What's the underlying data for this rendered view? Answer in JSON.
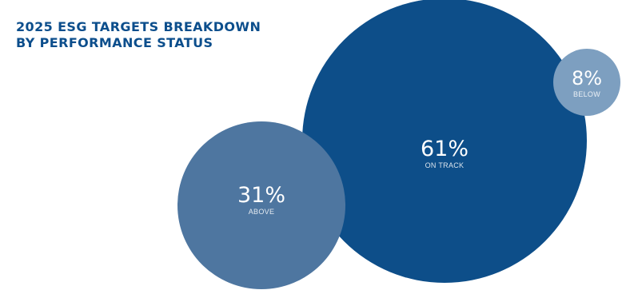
{
  "chart_data": {
    "type": "bubble",
    "title": [
      "2025 ESG TARGETS BREAKDOWN",
      "BY PERFORMANCE STATUS"
    ],
    "series": [
      {
        "name": "ON TRACK",
        "value": 61,
        "display": "61%",
        "color": "#0d4e89"
      },
      {
        "name": "ABOVE",
        "value": 31,
        "display": "31%",
        "color": "#4e76a0"
      },
      {
        "name": "BELOW",
        "value": 8,
        "display": "8%",
        "color": "#7d9fc0"
      }
    ]
  }
}
